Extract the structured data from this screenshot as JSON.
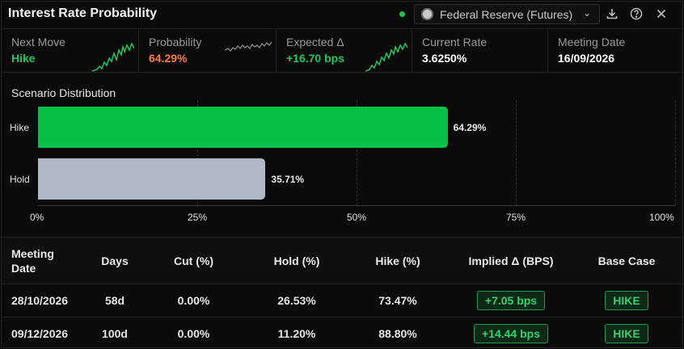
{
  "header": {
    "title": "Interest Rate Probability",
    "source_label": "Federal Reserve (Futures)",
    "live_color": "#16c64a"
  },
  "kpis": [
    {
      "label": "Next Move",
      "value": "Hike",
      "color": "#22c55e",
      "sparkline_color": "#22c55e"
    },
    {
      "label": "Probability",
      "value": "64.29%",
      "color": "#ff7a45",
      "sparkline_color": "#8a8a8e"
    },
    {
      "label": "Expected Δ",
      "value": "+16.70 bps",
      "color": "#22c55e",
      "sparkline_color": "#22c55e"
    },
    {
      "label": "Current Rate",
      "value": "3.6250%",
      "color": "#ffffff"
    },
    {
      "label": "Meeting Date",
      "value": "16/09/2026",
      "color": "#ffffff"
    }
  ],
  "chart_data": {
    "type": "bar",
    "orientation": "horizontal",
    "title": "Scenario Distribution",
    "categories": [
      "Hike",
      "Hold"
    ],
    "values": [
      64.29,
      35.71
    ],
    "value_labels": [
      "64.29%",
      "35.71%"
    ],
    "colors": [
      "#07c048",
      "#b0b7c6"
    ],
    "xlim": [
      0,
      100
    ],
    "x_ticks": [
      "0%",
      "25%",
      "50%",
      "75%",
      "100%"
    ],
    "grid": true
  },
  "table": {
    "columns": [
      "Meeting Date",
      "Days",
      "Cut (%)",
      "Hold (%)",
      "Hike (%)",
      "Implied Δ (BPS)",
      "Base Case"
    ],
    "rows": [
      {
        "date": "28/10/2026",
        "days": "58d",
        "cut": "0.00%",
        "hold": "26.53%",
        "hike": "73.47%",
        "implied": "+7.05 bps",
        "base": "HIKE"
      },
      {
        "date": "09/12/2026",
        "days": "100d",
        "cut": "0.00%",
        "hold": "11.20%",
        "hike": "88.80%",
        "implied": "+14.44 bps",
        "base": "HIKE"
      }
    ]
  }
}
